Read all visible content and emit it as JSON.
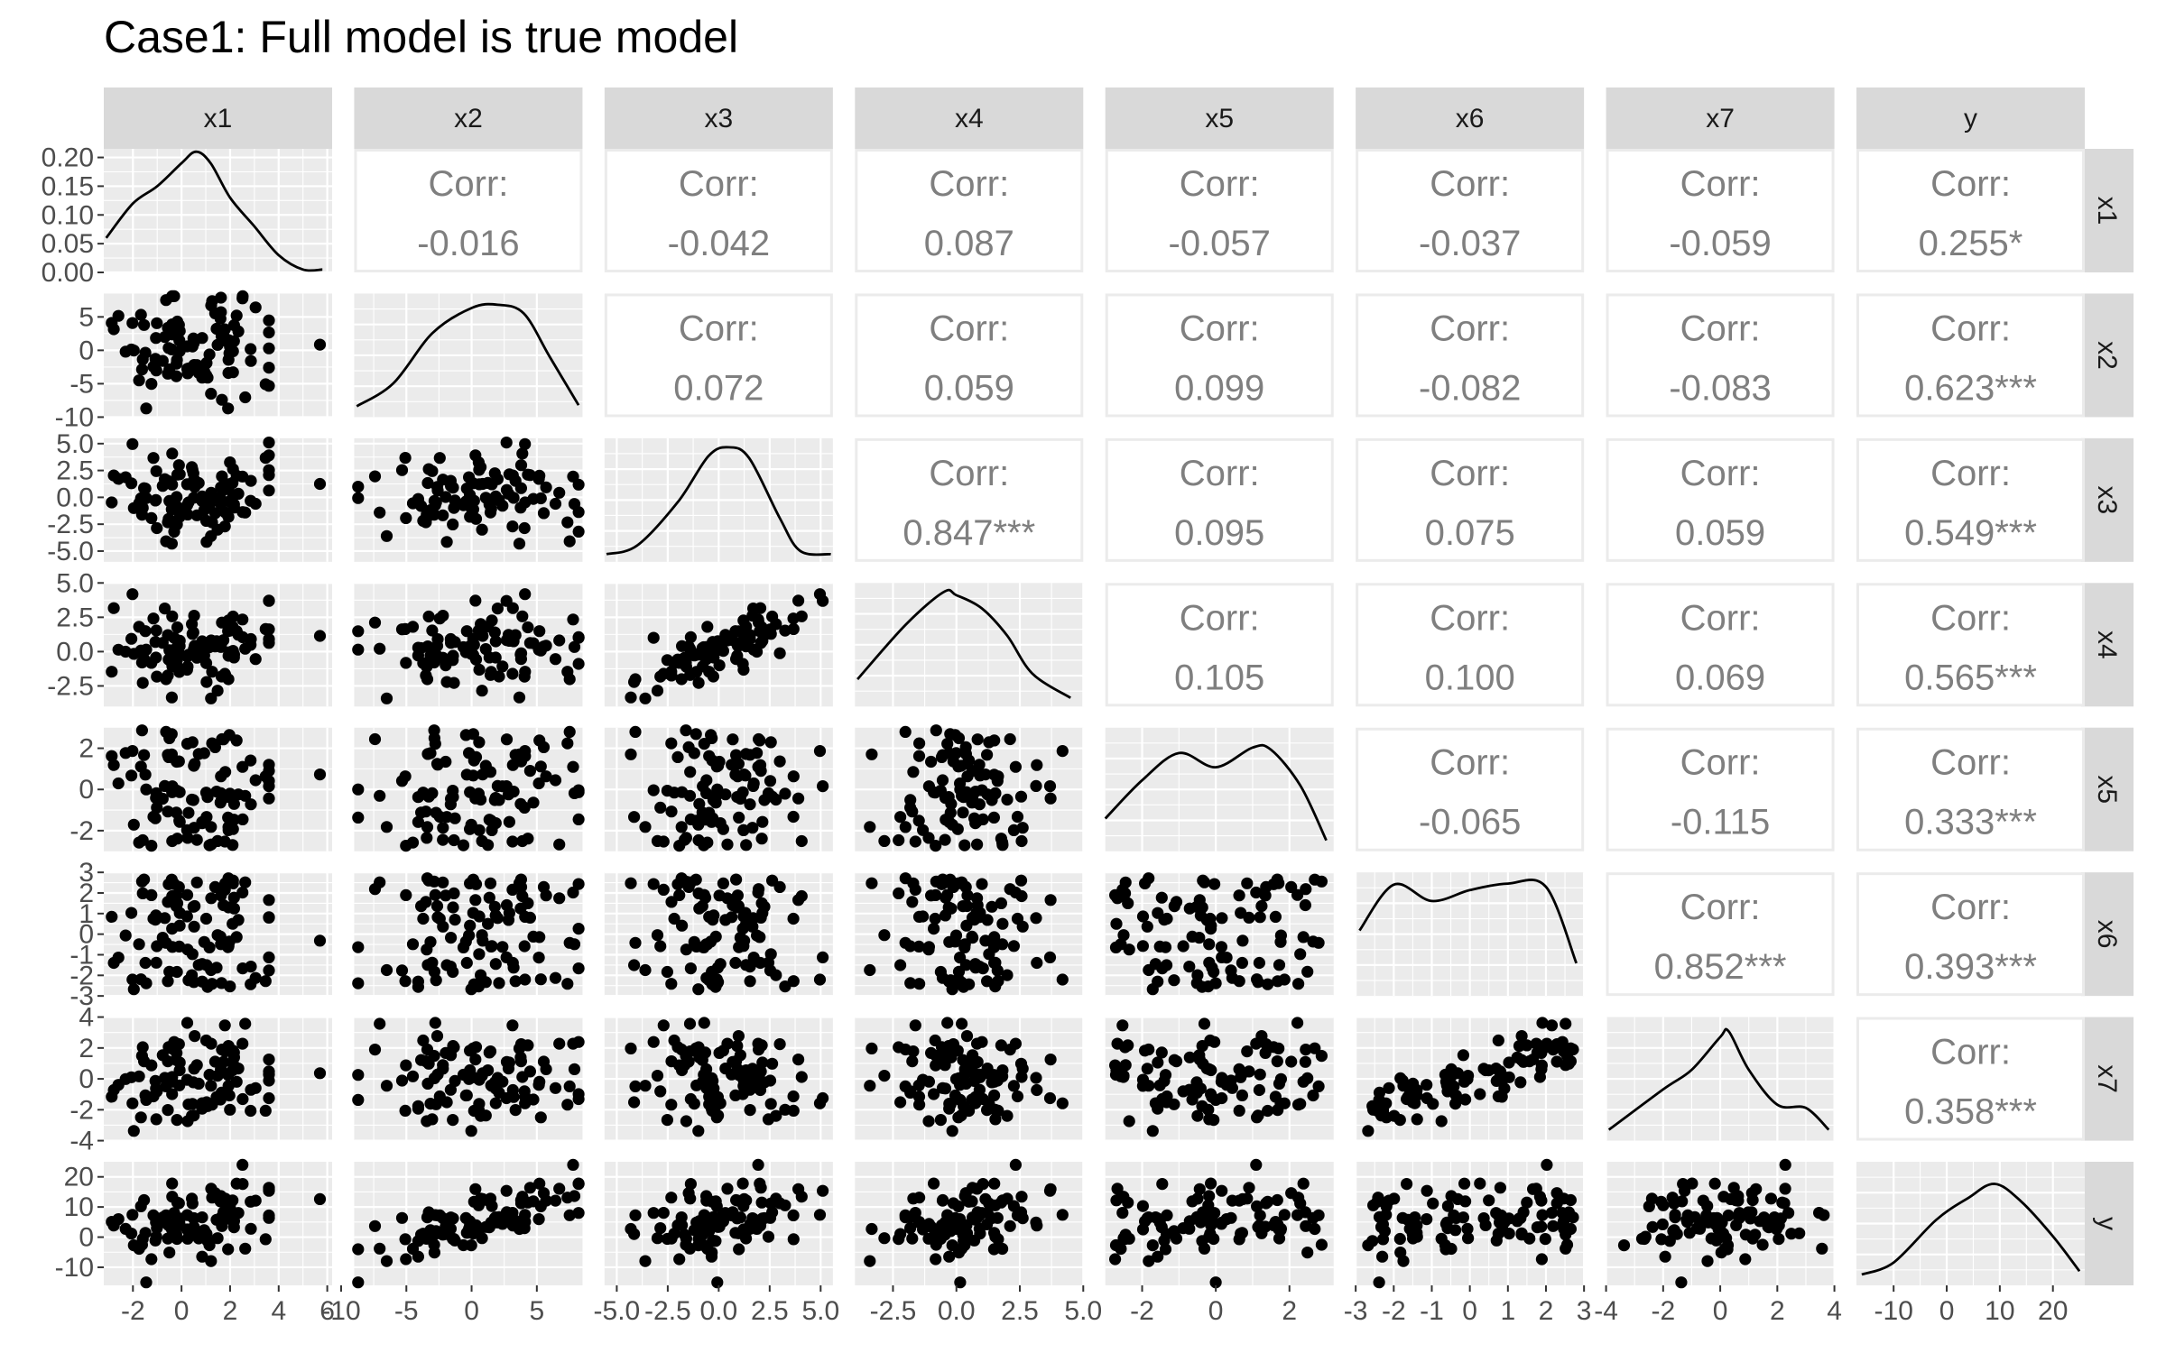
{
  "chart_data": {
    "type": "pairs",
    "title": "Case1: Full model is true model",
    "variables": [
      "x1",
      "x2",
      "x3",
      "x4",
      "x5",
      "x6",
      "x7",
      "y"
    ],
    "diag_label": "Corr:",
    "correlations": [
      {
        "row": "x1",
        "col": "x2",
        "value": "-0.016"
      },
      {
        "row": "x1",
        "col": "x3",
        "value": "-0.042"
      },
      {
        "row": "x1",
        "col": "x4",
        "value": "0.087"
      },
      {
        "row": "x1",
        "col": "x5",
        "value": "-0.057"
      },
      {
        "row": "x1",
        "col": "x6",
        "value": "-0.037"
      },
      {
        "row": "x1",
        "col": "x7",
        "value": "-0.059"
      },
      {
        "row": "x1",
        "col": "y",
        "value": "0.255*"
      },
      {
        "row": "x2",
        "col": "x3",
        "value": "0.072"
      },
      {
        "row": "x2",
        "col": "x4",
        "value": "0.059"
      },
      {
        "row": "x2",
        "col": "x5",
        "value": "0.099"
      },
      {
        "row": "x2",
        "col": "x6",
        "value": "-0.082"
      },
      {
        "row": "x2",
        "col": "x7",
        "value": "-0.083"
      },
      {
        "row": "x2",
        "col": "y",
        "value": "0.623***"
      },
      {
        "row": "x3",
        "col": "x4",
        "value": "0.847***"
      },
      {
        "row": "x3",
        "col": "x5",
        "value": "0.095"
      },
      {
        "row": "x3",
        "col": "x6",
        "value": "0.075"
      },
      {
        "row": "x3",
        "col": "x7",
        "value": "0.059"
      },
      {
        "row": "x3",
        "col": "y",
        "value": "0.549***"
      },
      {
        "row": "x4",
        "col": "x5",
        "value": "0.105"
      },
      {
        "row": "x4",
        "col": "x6",
        "value": "0.100"
      },
      {
        "row": "x4",
        "col": "x7",
        "value": "0.069"
      },
      {
        "row": "x4",
        "col": "y",
        "value": "0.565***"
      },
      {
        "row": "x5",
        "col": "x6",
        "value": "-0.065"
      },
      {
        "row": "x5",
        "col": "x7",
        "value": "-0.115"
      },
      {
        "row": "x5",
        "col": "y",
        "value": "0.333***"
      },
      {
        "row": "x6",
        "col": "x7",
        "value": "0.852***"
      },
      {
        "row": "x6",
        "col": "y",
        "value": "0.393***"
      },
      {
        "row": "x7",
        "col": "y",
        "value": "0.358***"
      }
    ],
    "x_axes": [
      {
        "var": "x1",
        "range": [
          -3.2,
          6.2
        ],
        "ticks": [
          -2,
          0,
          2,
          4,
          6
        ],
        "labels": [
          "-2",
          "0",
          "2",
          "4",
          "6"
        ]
      },
      {
        "var": "x2",
        "range": [
          -9.0,
          8.5
        ],
        "ticks": [
          -10,
          -5,
          0,
          5
        ],
        "labels": [
          "-10",
          "-5",
          "0",
          "5"
        ]
      },
      {
        "var": "x3",
        "range": [
          -5.6,
          5.6
        ],
        "ticks": [
          -5,
          -2.5,
          0,
          2.5,
          5
        ],
        "labels": [
          "-5.0",
          "-2.5",
          "0.0",
          "2.5",
          "5.0"
        ]
      },
      {
        "var": "x4",
        "range": [
          -4.0,
          5.0
        ],
        "ticks": [
          -2.5,
          0,
          2.5,
          5
        ],
        "labels": [
          "-2.5",
          "0.0",
          "2.5",
          "5.0"
        ]
      },
      {
        "var": "x5",
        "range": [
          -3.0,
          3.2
        ],
        "ticks": [
          -2,
          0,
          2
        ],
        "labels": [
          "-2",
          "0",
          "2"
        ]
      },
      {
        "var": "x6",
        "range": [
          -3.0,
          3.0
        ],
        "ticks": [
          -3,
          -2,
          -1,
          0,
          1,
          2,
          3
        ],
        "labels": [
          "-3",
          "-2",
          "-1",
          "0",
          "1",
          "2",
          "3"
        ]
      },
      {
        "var": "x7",
        "range": [
          -4.0,
          4.0
        ],
        "ticks": [
          -4,
          -2,
          0,
          2,
          4
        ],
        "labels": [
          "-4",
          "-2",
          "0",
          "2",
          "4"
        ]
      },
      {
        "var": "y",
        "range": [
          -17,
          26
        ],
        "ticks": [
          -10,
          0,
          10,
          20
        ],
        "labels": [
          "-10",
          "0",
          "10",
          "20"
        ]
      }
    ],
    "y_axes": [
      {
        "var": "x1",
        "range": [
          0,
          0.215
        ],
        "ticks": [
          0,
          0.05,
          0.1,
          0.15,
          0.2
        ],
        "labels": [
          "0.00",
          "0.05",
          "0.10",
          "0.15",
          "0.20"
        ]
      },
      {
        "var": "x2",
        "range": [
          -10,
          8.5
        ],
        "ticks": [
          -10,
          -5,
          0,
          5
        ],
        "labels": [
          "-10",
          "-5",
          "0",
          "5"
        ]
      },
      {
        "var": "x3",
        "range": [
          -6.0,
          5.5
        ],
        "ticks": [
          -5,
          -2.5,
          0,
          2.5,
          5
        ],
        "labels": [
          "-5.0",
          "-2.5",
          "0.0",
          "2.5",
          "5.0"
        ]
      },
      {
        "var": "x4",
        "range": [
          -4.0,
          5.0
        ],
        "ticks": [
          -2.5,
          0,
          2.5,
          5
        ],
        "labels": [
          "-2.5",
          "0.0",
          "2.5",
          "5.0"
        ]
      },
      {
        "var": "x5",
        "range": [
          -3.0,
          3.0
        ],
        "ticks": [
          -2,
          0,
          2
        ],
        "labels": [
          "-2",
          "0",
          "2"
        ]
      },
      {
        "var": "x6",
        "range": [
          -3.0,
          3.0
        ],
        "ticks": [
          -3,
          -2,
          -1,
          0,
          1,
          2,
          3
        ],
        "labels": [
          "-3",
          "-2",
          "-1",
          "0",
          "1",
          "2",
          "3"
        ]
      },
      {
        "var": "x7",
        "range": [
          -4.0,
          4.0
        ],
        "ticks": [
          -4,
          -2,
          0,
          2,
          4
        ],
        "labels": [
          "-4",
          "-2",
          "0",
          "2",
          "4"
        ]
      },
      {
        "var": "y",
        "range": [
          -16,
          25
        ],
        "ticks": [
          -10,
          0,
          10,
          20
        ],
        "labels": [
          "-10",
          "0",
          "10",
          "20"
        ]
      }
    ],
    "densities": [
      {
        "var": "x1",
        "x": [
          -3.1,
          -2.0,
          -1.0,
          0.0,
          0.6,
          1.2,
          2.0,
          3.0,
          4.0,
          5.0,
          5.8
        ],
        "y": [
          0.06,
          0.12,
          0.15,
          0.19,
          0.21,
          0.19,
          0.13,
          0.08,
          0.03,
          0.005,
          0.005
        ]
      },
      {
        "var": "x2",
        "x": [
          -8.8,
          -6,
          -3,
          0,
          2,
          4,
          6,
          8.2
        ],
        "y": [
          0.05,
          0.26,
          0.72,
          0.95,
          0.98,
          0.9,
          0.5,
          0.06
        ]
      },
      {
        "var": "x3",
        "x": [
          -5.5,
          -4,
          -2,
          -0.5,
          0.5,
          1.5,
          3,
          4,
          5.5
        ],
        "y": [
          0.02,
          0.1,
          0.5,
          0.92,
          1.0,
          0.9,
          0.35,
          0.05,
          0.02
        ]
      },
      {
        "var": "x4",
        "x": [
          -3.9,
          -2,
          -0.5,
          0,
          1,
          2,
          3,
          4.5
        ],
        "y": [
          0.2,
          0.7,
          1.0,
          0.97,
          0.85,
          0.6,
          0.25,
          0.03
        ]
      },
      {
        "var": "x5",
        "x": [
          -3.0,
          -2,
          -1,
          0,
          1,
          1.5,
          2.3,
          3.0
        ],
        "y": [
          0.25,
          0.6,
          0.85,
          0.72,
          0.9,
          0.88,
          0.55,
          0.05
        ]
      },
      {
        "var": "x6",
        "x": [
          -2.9,
          -2,
          -1,
          0,
          1,
          2,
          2.8
        ],
        "y": [
          0.55,
          0.97,
          0.82,
          0.92,
          0.98,
          0.95,
          0.25
        ]
      },
      {
        "var": "x7",
        "x": [
          -3.9,
          -2,
          -1,
          0,
          0.3,
          1,
          2,
          3,
          3.8
        ],
        "y": [
          0.05,
          0.42,
          0.6,
          0.9,
          0.95,
          0.6,
          0.28,
          0.25,
          0.05
        ]
      },
      {
        "var": "y",
        "x": [
          -16,
          -10,
          -2,
          4,
          9,
          14,
          20,
          25
        ],
        "y": [
          0.05,
          0.16,
          0.55,
          0.75,
          0.88,
          0.72,
          0.4,
          0.08
        ]
      }
    ]
  }
}
